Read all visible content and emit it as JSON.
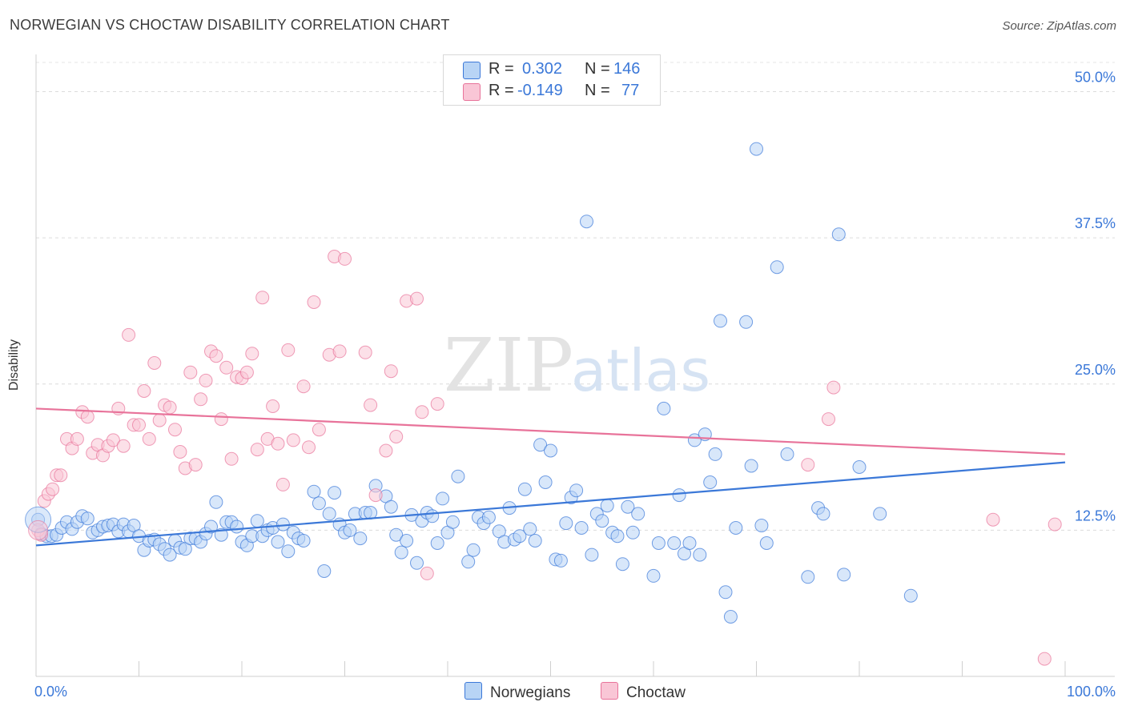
{
  "header": {
    "title": "NORWEGIAN VS CHOCTAW DISABILITY CORRELATION CHART",
    "source": "Source: ZipAtlas.com"
  },
  "watermark": {
    "zip": "ZIP",
    "atlas": "atlas"
  },
  "legend": {
    "rows": [
      {
        "r_label": "R =",
        "r_value": "0.302",
        "n_label": "N =",
        "n_value": "146",
        "color": "#b8d4f5"
      },
      {
        "r_label": "R =",
        "r_value": "-0.149",
        "n_label": "N =",
        "n_value": "77",
        "color": "#f9c6d6"
      }
    ]
  },
  "bottom_legend": {
    "norwegians": "Norwegians",
    "choctaw": "Choctaw"
  },
  "chart_data": {
    "type": "scatter",
    "title": "NORWEGIAN VS CHOCTAW DISABILITY CORRELATION CHART",
    "xlabel": "",
    "ylabel": "Disability",
    "xlim": [
      0,
      100
    ],
    "ylim": [
      0,
      52.5
    ],
    "x_tick_labels": [
      "0.0%",
      "100.0%"
    ],
    "y_ticks": [
      12.5,
      25.0,
      37.5,
      50.0
    ],
    "y_tick_labels": [
      "12.5%",
      "25.0%",
      "37.5%",
      "50.0%"
    ],
    "grid": "horizontal dashed",
    "legend_position": "top-center",
    "series": [
      {
        "name": "Norwegians",
        "color": "#3b78d8",
        "fill": "#b8d4f5",
        "r": 0.302,
        "n": 146,
        "trend": {
          "x": [
            0,
            100
          ],
          "y": [
            11.2,
            18.3
          ]
        },
        "points": [
          [
            0.2,
            13.4
          ],
          [
            0.5,
            12.2
          ],
          [
            1,
            12.0
          ],
          [
            1.5,
            12.0
          ],
          [
            2,
            12.1
          ],
          [
            2.5,
            12.7
          ],
          [
            3,
            13.2
          ],
          [
            3.5,
            12.6
          ],
          [
            4,
            13.2
          ],
          [
            4.5,
            13.7
          ],
          [
            5,
            13.5
          ],
          [
            5.5,
            12.3
          ],
          [
            6,
            12.5
          ],
          [
            6.5,
            12.8
          ],
          [
            7,
            12.9
          ],
          [
            7.5,
            13.0
          ],
          [
            8,
            12.4
          ],
          [
            8.5,
            13.0
          ],
          [
            9,
            12.4
          ],
          [
            9.5,
            12.9
          ],
          [
            10,
            12.0
          ],
          [
            10.5,
            10.8
          ],
          [
            11,
            11.6
          ],
          [
            11.5,
            11.7
          ],
          [
            12,
            11.3
          ],
          [
            12.5,
            10.9
          ],
          [
            13,
            10.4
          ],
          [
            13.5,
            11.6
          ],
          [
            14,
            11.0
          ],
          [
            14.5,
            10.9
          ],
          [
            15,
            11.8
          ],
          [
            15.5,
            11.8
          ],
          [
            16,
            11.5
          ],
          [
            16.5,
            12.2
          ],
          [
            17,
            12.8
          ],
          [
            17.5,
            14.9
          ],
          [
            18,
            12.1
          ],
          [
            18.5,
            13.2
          ],
          [
            19,
            13.2
          ],
          [
            19.5,
            12.8
          ],
          [
            20,
            11.5
          ],
          [
            20.5,
            11.2
          ],
          [
            21,
            12.0
          ],
          [
            21.5,
            13.3
          ],
          [
            22,
            12.0
          ],
          [
            22.5,
            12.5
          ],
          [
            23,
            12.7
          ],
          [
            23.5,
            11.5
          ],
          [
            24,
            13.0
          ],
          [
            24.5,
            10.7
          ],
          [
            25,
            12.3
          ],
          [
            25.5,
            11.8
          ],
          [
            26,
            11.6
          ],
          [
            27,
            15.8
          ],
          [
            27.5,
            14.8
          ],
          [
            28,
            9.0
          ],
          [
            28.5,
            13.9
          ],
          [
            29,
            15.7
          ],
          [
            29.5,
            13.0
          ],
          [
            30,
            12.3
          ],
          [
            30.5,
            12.5
          ],
          [
            31,
            13.9
          ],
          [
            31.5,
            11.8
          ],
          [
            32,
            14.0
          ],
          [
            32.5,
            14.0
          ],
          [
            33,
            16.3
          ],
          [
            34,
            15.4
          ],
          [
            34.5,
            14.5
          ],
          [
            35,
            12.1
          ],
          [
            35.5,
            10.6
          ],
          [
            36,
            11.6
          ],
          [
            36.5,
            13.8
          ],
          [
            37,
            9.7
          ],
          [
            37.5,
            13.3
          ],
          [
            38,
            14.0
          ],
          [
            38.5,
            13.7
          ],
          [
            39,
            11.4
          ],
          [
            39.5,
            15.2
          ],
          [
            40,
            12.3
          ],
          [
            40.5,
            13.2
          ],
          [
            41,
            17.1
          ],
          [
            42,
            9.8
          ],
          [
            42.5,
            10.8
          ],
          [
            43,
            13.6
          ],
          [
            43.5,
            13.1
          ],
          [
            44,
            13.6
          ],
          [
            45,
            12.4
          ],
          [
            45.5,
            11.5
          ],
          [
            46,
            14.4
          ],
          [
            46.5,
            11.7
          ],
          [
            47,
            12.0
          ],
          [
            47.5,
            16.0
          ],
          [
            48,
            12.6
          ],
          [
            48.5,
            11.6
          ],
          [
            49,
            19.8
          ],
          [
            49.5,
            16.6
          ],
          [
            50,
            19.3
          ],
          [
            50.5,
            10.0
          ],
          [
            51,
            9.9
          ],
          [
            51.5,
            13.1
          ],
          [
            52,
            15.3
          ],
          [
            52.5,
            15.9
          ],
          [
            53,
            12.7
          ],
          [
            53.5,
            38.9
          ],
          [
            54,
            10.4
          ],
          [
            54.5,
            13.9
          ],
          [
            55,
            13.3
          ],
          [
            55.5,
            14.6
          ],
          [
            56,
            12.3
          ],
          [
            56.5,
            12.0
          ],
          [
            57,
            9.6
          ],
          [
            57.5,
            14.5
          ],
          [
            58,
            12.3
          ],
          [
            58.5,
            13.9
          ],
          [
            60,
            8.6
          ],
          [
            60.5,
            11.4
          ],
          [
            61,
            22.9
          ],
          [
            62,
            11.4
          ],
          [
            62.5,
            15.5
          ],
          [
            63,
            10.5
          ],
          [
            63.5,
            11.4
          ],
          [
            64,
            20.2
          ],
          [
            64.5,
            10.4
          ],
          [
            65,
            20.7
          ],
          [
            65.5,
            16.6
          ],
          [
            66,
            19.0
          ],
          [
            66.5,
            30.4
          ],
          [
            67,
            7.2
          ],
          [
            67.5,
            5.1
          ],
          [
            68,
            12.7
          ],
          [
            69,
            30.3
          ],
          [
            69.5,
            18.0
          ],
          [
            70,
            45.1
          ],
          [
            70.5,
            12.9
          ],
          [
            71,
            11.4
          ],
          [
            72,
            35.0
          ],
          [
            73,
            19.0
          ],
          [
            75,
            8.5
          ],
          [
            76,
            14.4
          ],
          [
            76.5,
            13.9
          ],
          [
            78,
            37.8
          ],
          [
            78.5,
            8.7
          ],
          [
            80,
            17.9
          ],
          [
            82,
            13.9
          ],
          [
            85,
            6.9
          ]
        ]
      },
      {
        "name": "Choctaw",
        "color": "#e8739a",
        "fill": "#f9c6d6",
        "r": -0.149,
        "n": 77,
        "trend": {
          "x": [
            0,
            100
          ],
          "y": [
            22.9,
            19.0
          ]
        },
        "points": [
          [
            0.2,
            12.5
          ],
          [
            0.5,
            12.1
          ],
          [
            0.8,
            15.0
          ],
          [
            1.2,
            15.6
          ],
          [
            1.6,
            16.0
          ],
          [
            2,
            17.2
          ],
          [
            2.4,
            17.2
          ],
          [
            3,
            20.3
          ],
          [
            3.5,
            19.5
          ],
          [
            4,
            20.3
          ],
          [
            4.5,
            22.6
          ],
          [
            5,
            22.2
          ],
          [
            5.5,
            19.1
          ],
          [
            6,
            19.8
          ],
          [
            6.5,
            18.9
          ],
          [
            7,
            19.7
          ],
          [
            7.5,
            20.2
          ],
          [
            8,
            22.9
          ],
          [
            8.5,
            19.7
          ],
          [
            9,
            29.2
          ],
          [
            9.5,
            21.5
          ],
          [
            10,
            21.5
          ],
          [
            10.5,
            24.4
          ],
          [
            11,
            20.3
          ],
          [
            11.5,
            26.8
          ],
          [
            12,
            21.9
          ],
          [
            12.5,
            23.2
          ],
          [
            13,
            23.0
          ],
          [
            13.5,
            21.1
          ],
          [
            14,
            19.2
          ],
          [
            14.5,
            17.8
          ],
          [
            15,
            26.0
          ],
          [
            15.5,
            18.1
          ],
          [
            16,
            23.7
          ],
          [
            16.5,
            25.3
          ],
          [
            17,
            27.8
          ],
          [
            17.5,
            27.4
          ],
          [
            18,
            22.0
          ],
          [
            18.5,
            26.4
          ],
          [
            19,
            18.6
          ],
          [
            19.5,
            25.6
          ],
          [
            20,
            25.5
          ],
          [
            20.5,
            26.0
          ],
          [
            21,
            27.6
          ],
          [
            21.5,
            19.4
          ],
          [
            22,
            32.4
          ],
          [
            22.5,
            20.3
          ],
          [
            23,
            23.1
          ],
          [
            23.5,
            19.9
          ],
          [
            24,
            16.4
          ],
          [
            24.5,
            27.9
          ],
          [
            25,
            20.2
          ],
          [
            26,
            24.8
          ],
          [
            26.5,
            19.6
          ],
          [
            27,
            32.0
          ],
          [
            27.5,
            21.1
          ],
          [
            28.5,
            27.5
          ],
          [
            29,
            35.9
          ],
          [
            29.5,
            27.8
          ],
          [
            30,
            35.7
          ],
          [
            32,
            27.7
          ],
          [
            32.5,
            23.2
          ],
          [
            33,
            15.5
          ],
          [
            34,
            19.3
          ],
          [
            34.5,
            26.1
          ],
          [
            35,
            20.5
          ],
          [
            36,
            32.1
          ],
          [
            37,
            32.3
          ],
          [
            37.5,
            22.6
          ],
          [
            38,
            8.8
          ],
          [
            39,
            23.3
          ],
          [
            75,
            18.1
          ],
          [
            77,
            22.0
          ],
          [
            77.5,
            24.7
          ],
          [
            93,
            13.4
          ],
          [
            98,
            1.5
          ],
          [
            99,
            13.0
          ]
        ]
      }
    ]
  }
}
